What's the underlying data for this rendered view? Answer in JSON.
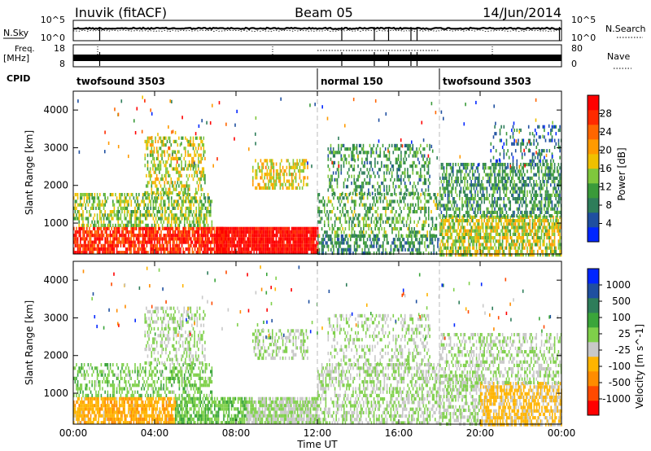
{
  "header": {
    "station": "Inuvik (fitACF)",
    "beam": "Beam 05",
    "date": "14/Jun/2014"
  },
  "top_panels": {
    "nsky_label": "N.Sky",
    "nsearch_label": "N.Search",
    "nsky_ticks": [
      "10^5",
      "10^0"
    ],
    "nsearch_ticks": [
      "10^5",
      "10^0"
    ],
    "freq_label": "Freq.",
    "freq_unit": "[MHz]",
    "freq_ticks": [
      "18",
      "8"
    ],
    "nave_label": "Nave",
    "nave_ticks": [
      "80",
      "0"
    ],
    "cpid_label": "CPID"
  },
  "cpid_segments": [
    {
      "label": "twofsound 3503",
      "start": 0,
      "end": 12
    },
    {
      "label": "normal 150",
      "start": 12,
      "end": 18
    },
    {
      "label": "twofsound 3503",
      "start": 18,
      "end": 24
    }
  ],
  "axes": {
    "x_ticks": [
      "00:00",
      "04:00",
      "08:00",
      "12:00",
      "16:00",
      "20:00",
      "00:00"
    ],
    "x_label": "Time UT",
    "y_label": "Slant Range [km]",
    "y_ticks": [
      "1000",
      "2000",
      "3000",
      "4000"
    ]
  },
  "chart_data": [
    {
      "type": "heatmap",
      "title": "",
      "xlabel": "",
      "ylabel": "Slant Range [km]",
      "xlim": [
        0,
        24
      ],
      "ylim": [
        180,
        4500
      ],
      "colorbar": {
        "label": "Power [dB]",
        "ticks": [
          "28",
          "24",
          "20",
          "16",
          "12",
          "8",
          "4"
        ],
        "range": [
          0,
          32
        ],
        "colors": [
          "#0026ff",
          "#1f4fa0",
          "#2e7d5a",
          "#3a9a3a",
          "#7fc73c",
          "#f0c000",
          "#ff9a00",
          "#ff6600",
          "#ff2a00",
          "#ff0000"
        ]
      },
      "regions": [
        {
          "t0": 0.0,
          "t1": 7.5,
          "r0": 200,
          "r1": 900,
          "value": 28,
          "density": 0.8
        },
        {
          "t0": 0.0,
          "t1": 6.8,
          "r0": 900,
          "r1": 1800,
          "value": 14,
          "density": 0.55
        },
        {
          "t0": 3.5,
          "t1": 6.5,
          "r0": 1800,
          "r1": 3300,
          "value": 16,
          "density": 0.45
        },
        {
          "t0": 7.0,
          "t1": 12.0,
          "r0": 200,
          "r1": 900,
          "value": 31,
          "density": 0.95
        },
        {
          "t0": 8.8,
          "t1": 11.5,
          "r0": 1900,
          "r1": 2700,
          "value": 18,
          "density": 0.5
        },
        {
          "t0": 12.0,
          "t1": 18.0,
          "r0": 200,
          "r1": 700,
          "value": 9,
          "density": 0.55
        },
        {
          "t0": 12.0,
          "t1": 18.0,
          "r0": 700,
          "r1": 1800,
          "value": 12,
          "density": 0.4
        },
        {
          "t0": 12.5,
          "t1": 17.5,
          "r0": 1800,
          "r1": 3100,
          "value": 10,
          "density": 0.35
        },
        {
          "t0": 18.0,
          "t1": 24.0,
          "r0": 200,
          "r1": 1200,
          "value": 16,
          "density": 0.7
        },
        {
          "t0": 18.0,
          "t1": 24.0,
          "r0": 1200,
          "r1": 2600,
          "value": 10,
          "density": 0.55
        },
        {
          "t0": 20.5,
          "t1": 24.0,
          "r0": 2600,
          "r1": 3600,
          "value": 7,
          "density": 0.2
        }
      ]
    },
    {
      "type": "heatmap",
      "title": "",
      "xlabel": "Time UT",
      "ylabel": "Slant Range [km]",
      "xlim": [
        0,
        24
      ],
      "ylim": [
        180,
        4500
      ],
      "colorbar": {
        "label": "Velocity [m s^-1]",
        "ticks": [
          "1000",
          "500",
          "100",
          "25",
          "-25",
          "-100",
          "-500",
          "-1000"
        ],
        "range": [
          -1200,
          1200
        ],
        "colors": [
          "#ff0000",
          "#ff4a00",
          "#ff8c00",
          "#ffb400",
          "#c8c8c8",
          "#7fd04a",
          "#3aa53a",
          "#2e7d5a",
          "#1f4fa0",
          "#0026ff"
        ]
      },
      "regions": [
        {
          "t0": 0.0,
          "t1": 5.0,
          "r0": 200,
          "r1": 900,
          "value": -400,
          "density": 0.75
        },
        {
          "t0": 0.0,
          "t1": 6.8,
          "r0": 900,
          "r1": 1800,
          "value": 150,
          "density": 0.45
        },
        {
          "t0": 3.5,
          "t1": 6.5,
          "r0": 1800,
          "r1": 3300,
          "value": 0,
          "density": 0.4
        },
        {
          "t0": 5.0,
          "t1": 8.5,
          "r0": 200,
          "r1": 900,
          "value": 200,
          "density": 0.7
        },
        {
          "t0": 8.5,
          "t1": 12.0,
          "r0": 200,
          "r1": 900,
          "value": 0,
          "density": 0.85
        },
        {
          "t0": 8.8,
          "t1": 11.5,
          "r0": 1900,
          "r1": 2700,
          "value": 0,
          "density": 0.45
        },
        {
          "t0": 12.0,
          "t1": 18.0,
          "r0": 200,
          "r1": 1800,
          "value": 0,
          "density": 0.5
        },
        {
          "t0": 12.5,
          "t1": 17.5,
          "r0": 1800,
          "r1": 3100,
          "value": 0,
          "density": 0.3
        },
        {
          "t0": 18.0,
          "t1": 20.0,
          "r0": 200,
          "r1": 1500,
          "value": 0,
          "density": 0.55
        },
        {
          "t0": 20.0,
          "t1": 24.0,
          "r0": 200,
          "r1": 1300,
          "value": -300,
          "density": 0.7
        },
        {
          "t0": 18.0,
          "t1": 24.0,
          "r0": 1300,
          "r1": 2600,
          "value": 0,
          "density": 0.45
        }
      ]
    }
  ],
  "colors": {
    "background": "#ffffff",
    "axis": "#000000",
    "gap": "#cccccc"
  }
}
